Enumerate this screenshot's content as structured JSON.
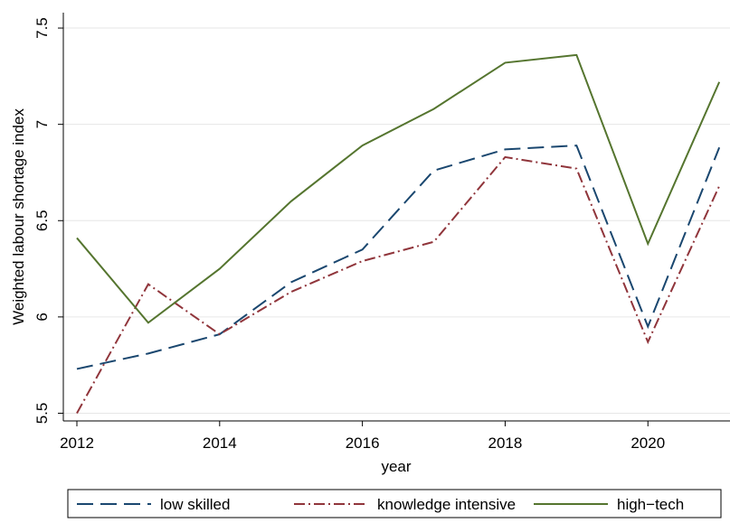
{
  "chart_data": {
    "type": "line",
    "x": [
      2012,
      2013,
      2014,
      2015,
      2016,
      2017,
      2018,
      2019,
      2020,
      2021
    ],
    "series": [
      {
        "name": "low skilled",
        "color": "#1a476f",
        "dash": "18 8",
        "values": [
          5.73,
          5.81,
          5.91,
          6.18,
          6.35,
          6.76,
          6.87,
          6.89,
          5.95,
          6.88
        ]
      },
      {
        "name": "knowledge intensive",
        "color": "#90353b",
        "dash": "12 4 2 4",
        "values": [
          5.5,
          6.17,
          5.91,
          6.13,
          6.29,
          6.39,
          6.83,
          6.77,
          5.87,
          6.68
        ]
      },
      {
        "name": "high−tech",
        "color": "#55752f",
        "dash": "none",
        "values": [
          6.41,
          5.97,
          6.25,
          6.6,
          6.89,
          7.08,
          7.32,
          7.36,
          6.38,
          7.22
        ]
      }
    ],
    "xlabel": "year",
    "ylabel": "Weighted labour shortage index",
    "xlim": [
      2011.81,
      2021.15
    ],
    "xticks": [
      2012,
      2014,
      2016,
      2018,
      2020
    ],
    "ylim": [
      5.46,
      7.58
    ],
    "yticks": [
      5.5,
      6,
      6.5,
      7,
      7.5
    ],
    "grid": true
  }
}
